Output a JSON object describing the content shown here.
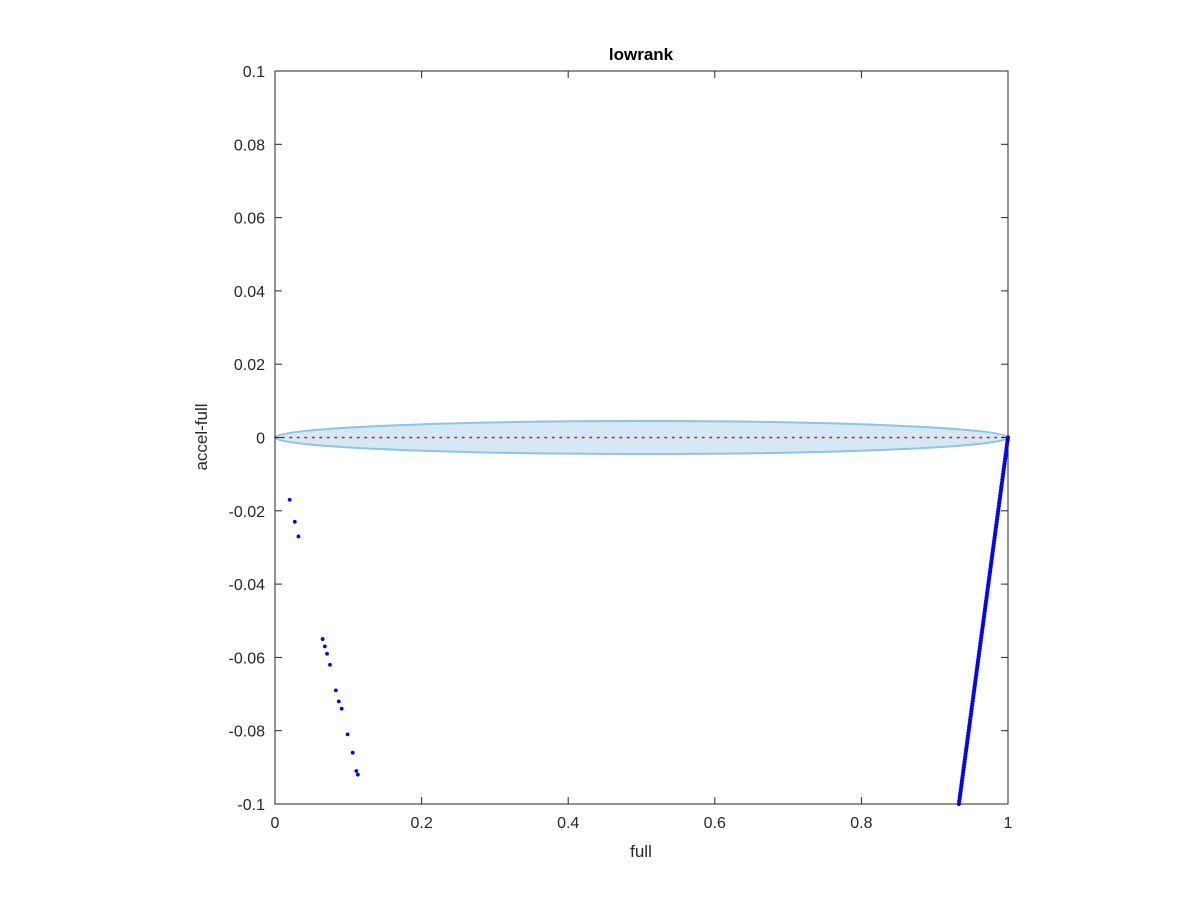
{
  "chart_data": {
    "type": "scatter",
    "title": "lowrank",
    "xlabel": "full",
    "ylabel": "accel-full",
    "xlim": [
      0,
      1
    ],
    "ylim": [
      -0.1,
      0.1
    ],
    "xticks": [
      0,
      0.2,
      0.4,
      0.6,
      0.8,
      1
    ],
    "xtick_labels": [
      "0",
      "0.2",
      "0.4",
      "0.6",
      "0.8",
      "1"
    ],
    "yticks": [
      -0.1,
      -0.08,
      -0.06,
      -0.04,
      -0.02,
      0,
      0.02,
      0.04,
      0.06,
      0.08,
      0.1
    ],
    "ytick_labels": [
      "-0.1",
      "-0.08",
      "-0.06",
      "-0.04",
      "-0.02",
      "0",
      "0.02",
      "0.04",
      "0.06",
      "0.08",
      "0.1"
    ],
    "grid": false,
    "colors": {
      "points": "#0000ff",
      "ellipse_fill": "#d6e8f6",
      "ellipse_stroke": "#8fc3df",
      "reference_line": "#ff0000",
      "axes": "#262626"
    },
    "ellipse": {
      "center": [
        0.5,
        0
      ],
      "x_halfwidth": 0.5,
      "y_halfheight": 0.0045
    },
    "reference_line": {
      "y": 0,
      "x_range": [
        0,
        1
      ],
      "style": "dotted"
    },
    "scatter_points": [
      [
        0.02,
        -0.017
      ],
      [
        0.027,
        -0.023
      ],
      [
        0.032,
        -0.027
      ],
      [
        0.065,
        -0.055
      ],
      [
        0.068,
        -0.057
      ],
      [
        0.071,
        -0.059
      ],
      [
        0.075,
        -0.062
      ],
      [
        0.083,
        -0.069
      ],
      [
        0.087,
        -0.072
      ],
      [
        0.091,
        -0.074
      ],
      [
        0.099,
        -0.081
      ],
      [
        0.106,
        -0.086
      ],
      [
        0.111,
        -0.091
      ],
      [
        0.113,
        -0.092
      ]
    ],
    "dense_band": {
      "x_start": 0.933,
      "y_start": -0.1,
      "x_end": 1.0,
      "y_end": 0.0,
      "points_count": 140
    }
  }
}
